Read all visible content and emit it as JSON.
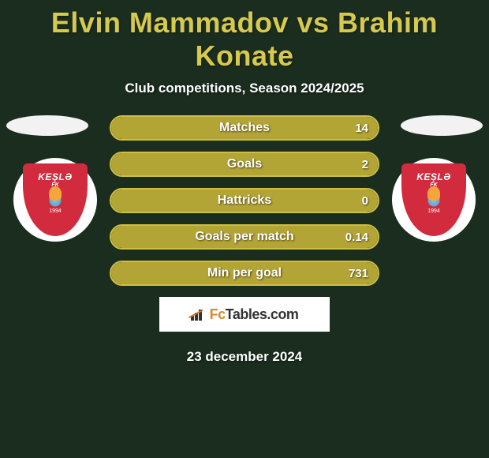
{
  "title": "Elvin Mammadov vs Brahim Konate",
  "subtitle": "Club competitions, Season 2024/2025",
  "date": "23 december 2024",
  "theme": {
    "background": "#1a2d1f",
    "title_color": "#d6c94e",
    "bar_fill": "#b3a436",
    "bar_border": "#cdbf42",
    "text_color": "#ffffff"
  },
  "player_left": {
    "club_name": "KEŞLƏ",
    "club_sub": "FK",
    "club_year": "1994"
  },
  "player_right": {
    "club_name": "KEŞLƏ",
    "club_sub": "FK",
    "club_year": "1994"
  },
  "stats": [
    {
      "label": "Matches",
      "value": "14",
      "fill_pct": 100
    },
    {
      "label": "Goals",
      "value": "2",
      "fill_pct": 100
    },
    {
      "label": "Hattricks",
      "value": "0",
      "fill_pct": 100
    },
    {
      "label": "Goals per match",
      "value": "0.14",
      "fill_pct": 100
    },
    {
      "label": "Min per goal",
      "value": "731",
      "fill_pct": 100
    }
  ],
  "brand": {
    "fc": "Fc",
    "tables": "Tables.com"
  }
}
